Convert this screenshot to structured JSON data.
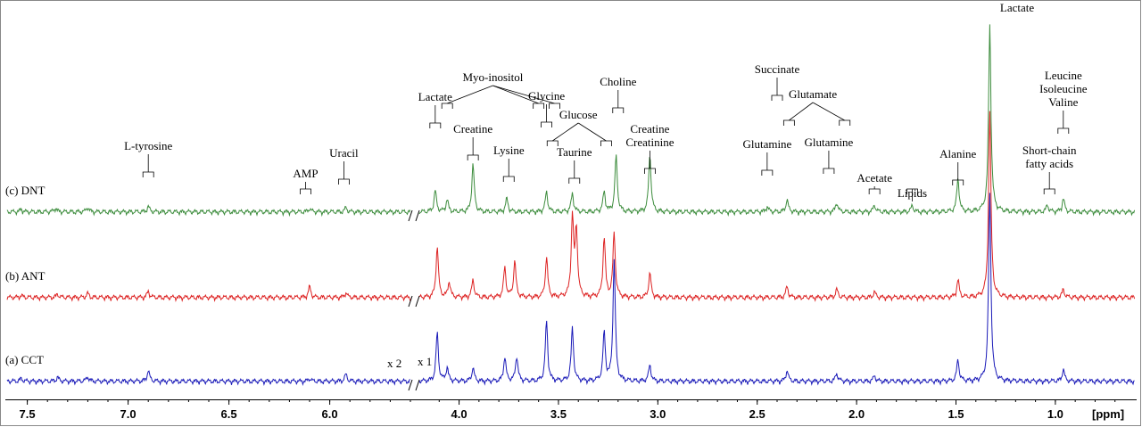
{
  "chart_data": {
    "type": "line",
    "title": "",
    "xlabel": "[ppm]",
    "ylabel": "",
    "x_axis_reversed": true,
    "xlim": [
      7.6,
      0.6
    ],
    "x_breaks": [
      [
        7.6,
        5.6
      ],
      [
        4.2,
        0.6
      ]
    ],
    "ticks": [
      {
        "v": 7.5,
        "t": "7.5"
      },
      {
        "v": 7.0,
        "t": "7.0"
      },
      {
        "v": 6.5,
        "t": "6.5"
      },
      {
        "v": 6.0,
        "t": "6.0"
      },
      {
        "v": 4.0,
        "t": "4.0"
      },
      {
        "v": 3.5,
        "t": "3.5"
      },
      {
        "v": 3.0,
        "t": "3.0"
      },
      {
        "v": 2.5,
        "t": "2.5"
      },
      {
        "v": 2.0,
        "t": "2.0"
      },
      {
        "v": 1.5,
        "t": "1.5"
      },
      {
        "v": 1.0,
        "t": "1.0"
      }
    ],
    "scale_labels": {
      "aromatic": "x 2",
      "aliphatic": "x 1"
    },
    "series": [
      {
        "name": "(c) DNT",
        "color": "#3c8c3c",
        "peaks": [
          {
            "ppm": 7.53,
            "h": 0.2
          },
          {
            "ppm": 7.36,
            "h": 0.3
          },
          {
            "ppm": 7.2,
            "h": 0.35
          },
          {
            "ppm": 6.9,
            "h": 0.4
          },
          {
            "ppm": 6.1,
            "h": 0.25
          },
          {
            "ppm": 5.92,
            "h": 0.3
          },
          {
            "ppm": 4.12,
            "h": 1.6
          },
          {
            "ppm": 4.06,
            "h": 0.9
          },
          {
            "ppm": 3.93,
            "h": 3.6
          },
          {
            "ppm": 3.76,
            "h": 1.0
          },
          {
            "ppm": 3.56,
            "h": 1.5
          },
          {
            "ppm": 3.43,
            "h": 1.4
          },
          {
            "ppm": 3.27,
            "h": 1.5
          },
          {
            "ppm": 3.21,
            "h": 4.2
          },
          {
            "ppm": 3.04,
            "h": 4.3
          },
          {
            "ppm": 2.45,
            "h": 0.4
          },
          {
            "ppm": 2.35,
            "h": 0.9
          },
          {
            "ppm": 2.1,
            "h": 0.7
          },
          {
            "ppm": 1.91,
            "h": 0.5
          },
          {
            "ppm": 1.72,
            "h": 0.45
          },
          {
            "ppm": 1.49,
            "h": 2.5
          },
          {
            "ppm": 1.33,
            "h": 14.0
          },
          {
            "ppm": 1.04,
            "h": 0.5
          },
          {
            "ppm": 0.96,
            "h": 1.0
          }
        ]
      },
      {
        "name": "(b) ANT",
        "color": "#dd2222",
        "peaks": [
          {
            "ppm": 7.53,
            "h": 0.15
          },
          {
            "ppm": 7.35,
            "h": 0.25
          },
          {
            "ppm": 7.2,
            "h": 0.3
          },
          {
            "ppm": 6.9,
            "h": 0.45
          },
          {
            "ppm": 6.1,
            "h": 0.8
          },
          {
            "ppm": 5.92,
            "h": 0.35
          },
          {
            "ppm": 4.11,
            "h": 3.8
          },
          {
            "ppm": 4.05,
            "h": 1.2
          },
          {
            "ppm": 3.93,
            "h": 1.3
          },
          {
            "ppm": 3.77,
            "h": 2.2
          },
          {
            "ppm": 3.72,
            "h": 2.7
          },
          {
            "ppm": 3.56,
            "h": 3.0
          },
          {
            "ppm": 3.43,
            "h": 6.0
          },
          {
            "ppm": 3.41,
            "h": 5.0
          },
          {
            "ppm": 3.27,
            "h": 4.5
          },
          {
            "ppm": 3.22,
            "h": 4.8
          },
          {
            "ppm": 3.04,
            "h": 1.8
          },
          {
            "ppm": 2.35,
            "h": 0.8
          },
          {
            "ppm": 2.1,
            "h": 0.6
          },
          {
            "ppm": 1.91,
            "h": 0.4
          },
          {
            "ppm": 1.49,
            "h": 1.3
          },
          {
            "ppm": 1.33,
            "h": 14.0
          },
          {
            "ppm": 0.96,
            "h": 0.6
          }
        ]
      },
      {
        "name": "(a) CCT",
        "color": "#1a1ab8",
        "peaks": [
          {
            "ppm": 7.53,
            "h": 0.2
          },
          {
            "ppm": 7.35,
            "h": 0.3
          },
          {
            "ppm": 7.2,
            "h": 0.35
          },
          {
            "ppm": 6.9,
            "h": 0.8
          },
          {
            "ppm": 6.1,
            "h": 0.2
          },
          {
            "ppm": 5.92,
            "h": 0.5
          },
          {
            "ppm": 4.11,
            "h": 3.6
          },
          {
            "ppm": 4.06,
            "h": 1.0
          },
          {
            "ppm": 3.93,
            "h": 1.0
          },
          {
            "ppm": 3.77,
            "h": 1.8
          },
          {
            "ppm": 3.71,
            "h": 1.9
          },
          {
            "ppm": 3.56,
            "h": 4.5
          },
          {
            "ppm": 3.43,
            "h": 4.0
          },
          {
            "ppm": 3.27,
            "h": 3.6
          },
          {
            "ppm": 3.22,
            "h": 9.0
          },
          {
            "ppm": 3.04,
            "h": 1.2
          },
          {
            "ppm": 2.35,
            "h": 0.8
          },
          {
            "ppm": 2.1,
            "h": 0.6
          },
          {
            "ppm": 1.91,
            "h": 0.4
          },
          {
            "ppm": 1.49,
            "h": 1.6
          },
          {
            "ppm": 1.33,
            "h": 14.0
          },
          {
            "ppm": 0.96,
            "h": 0.9
          }
        ]
      }
    ],
    "annotations": [
      {
        "lines": [
          "L-tyrosine"
        ],
        "ppm": 6.9,
        "ppms": [
          6.9
        ]
      },
      {
        "lines": [
          "AMP"
        ],
        "ppm": 6.12,
        "ppms": [
          6.12
        ]
      },
      {
        "lines": [
          "Uracil"
        ],
        "ppm": 5.93,
        "ppms": [
          5.93
        ]
      },
      {
        "lines": [
          "Lactate"
        ],
        "ppm": 4.12,
        "ppms": [
          4.12
        ]
      },
      {
        "lines": [
          "Myo-inositol"
        ],
        "ppm": 3.83,
        "ppms": [
          4.06,
          3.6,
          3.52
        ]
      },
      {
        "lines": [
          "Creatine"
        ],
        "ppm": 3.93,
        "ppms": [
          3.93
        ]
      },
      {
        "lines": [
          "Lysine"
        ],
        "ppm": 3.75,
        "ppms": [
          3.75
        ]
      },
      {
        "lines": [
          "Glycine"
        ],
        "ppm": 3.56,
        "ppms": [
          3.56
        ]
      },
      {
        "lines": [
          "Glucose"
        ],
        "ppm": 3.4,
        "ppms": [
          3.53,
          3.26
        ]
      },
      {
        "lines": [
          "Taurine"
        ],
        "ppm": 3.42,
        "ppms": [
          3.42
        ]
      },
      {
        "lines": [
          "Choline"
        ],
        "ppm": 3.2,
        "ppms": [
          3.2
        ]
      },
      {
        "lines": [
          "Creatine",
          "Creatinine"
        ],
        "ppm": 3.04,
        "ppms": [
          3.04
        ]
      },
      {
        "lines": [
          "Glutamine"
        ],
        "ppm": 2.45,
        "ppms": [
          2.45
        ]
      },
      {
        "lines": [
          "Succinate"
        ],
        "ppm": 2.4,
        "ppms": [
          2.4
        ]
      },
      {
        "lines": [
          "Glutamate"
        ],
        "ppm": 2.22,
        "ppms": [
          2.34,
          2.06
        ]
      },
      {
        "lines": [
          "Glutamine"
        ],
        "ppm": 2.14,
        "ppms": [
          2.14
        ]
      },
      {
        "lines": [
          "Acetate"
        ],
        "ppm": 1.91,
        "ppms": [
          1.91
        ]
      },
      {
        "lines": [
          "Lipids"
        ],
        "ppm": 1.72,
        "ppms": [
          1.72
        ]
      },
      {
        "lines": [
          "Alanine"
        ],
        "ppm": 1.49,
        "ppms": [
          1.49
        ]
      },
      {
        "lines": [
          "Lactate"
        ],
        "ppm": 1.33,
        "ppms": [
          1.33
        ]
      },
      {
        "lines": [
          "Short-chain",
          "fatty acids"
        ],
        "ppm": 1.03,
        "ppms": [
          1.03
        ]
      },
      {
        "lines": [
          "Leucine",
          "Isoleucine",
          "Valine"
        ],
        "ppm": 0.96,
        "ppms": [
          0.96
        ]
      }
    ]
  }
}
